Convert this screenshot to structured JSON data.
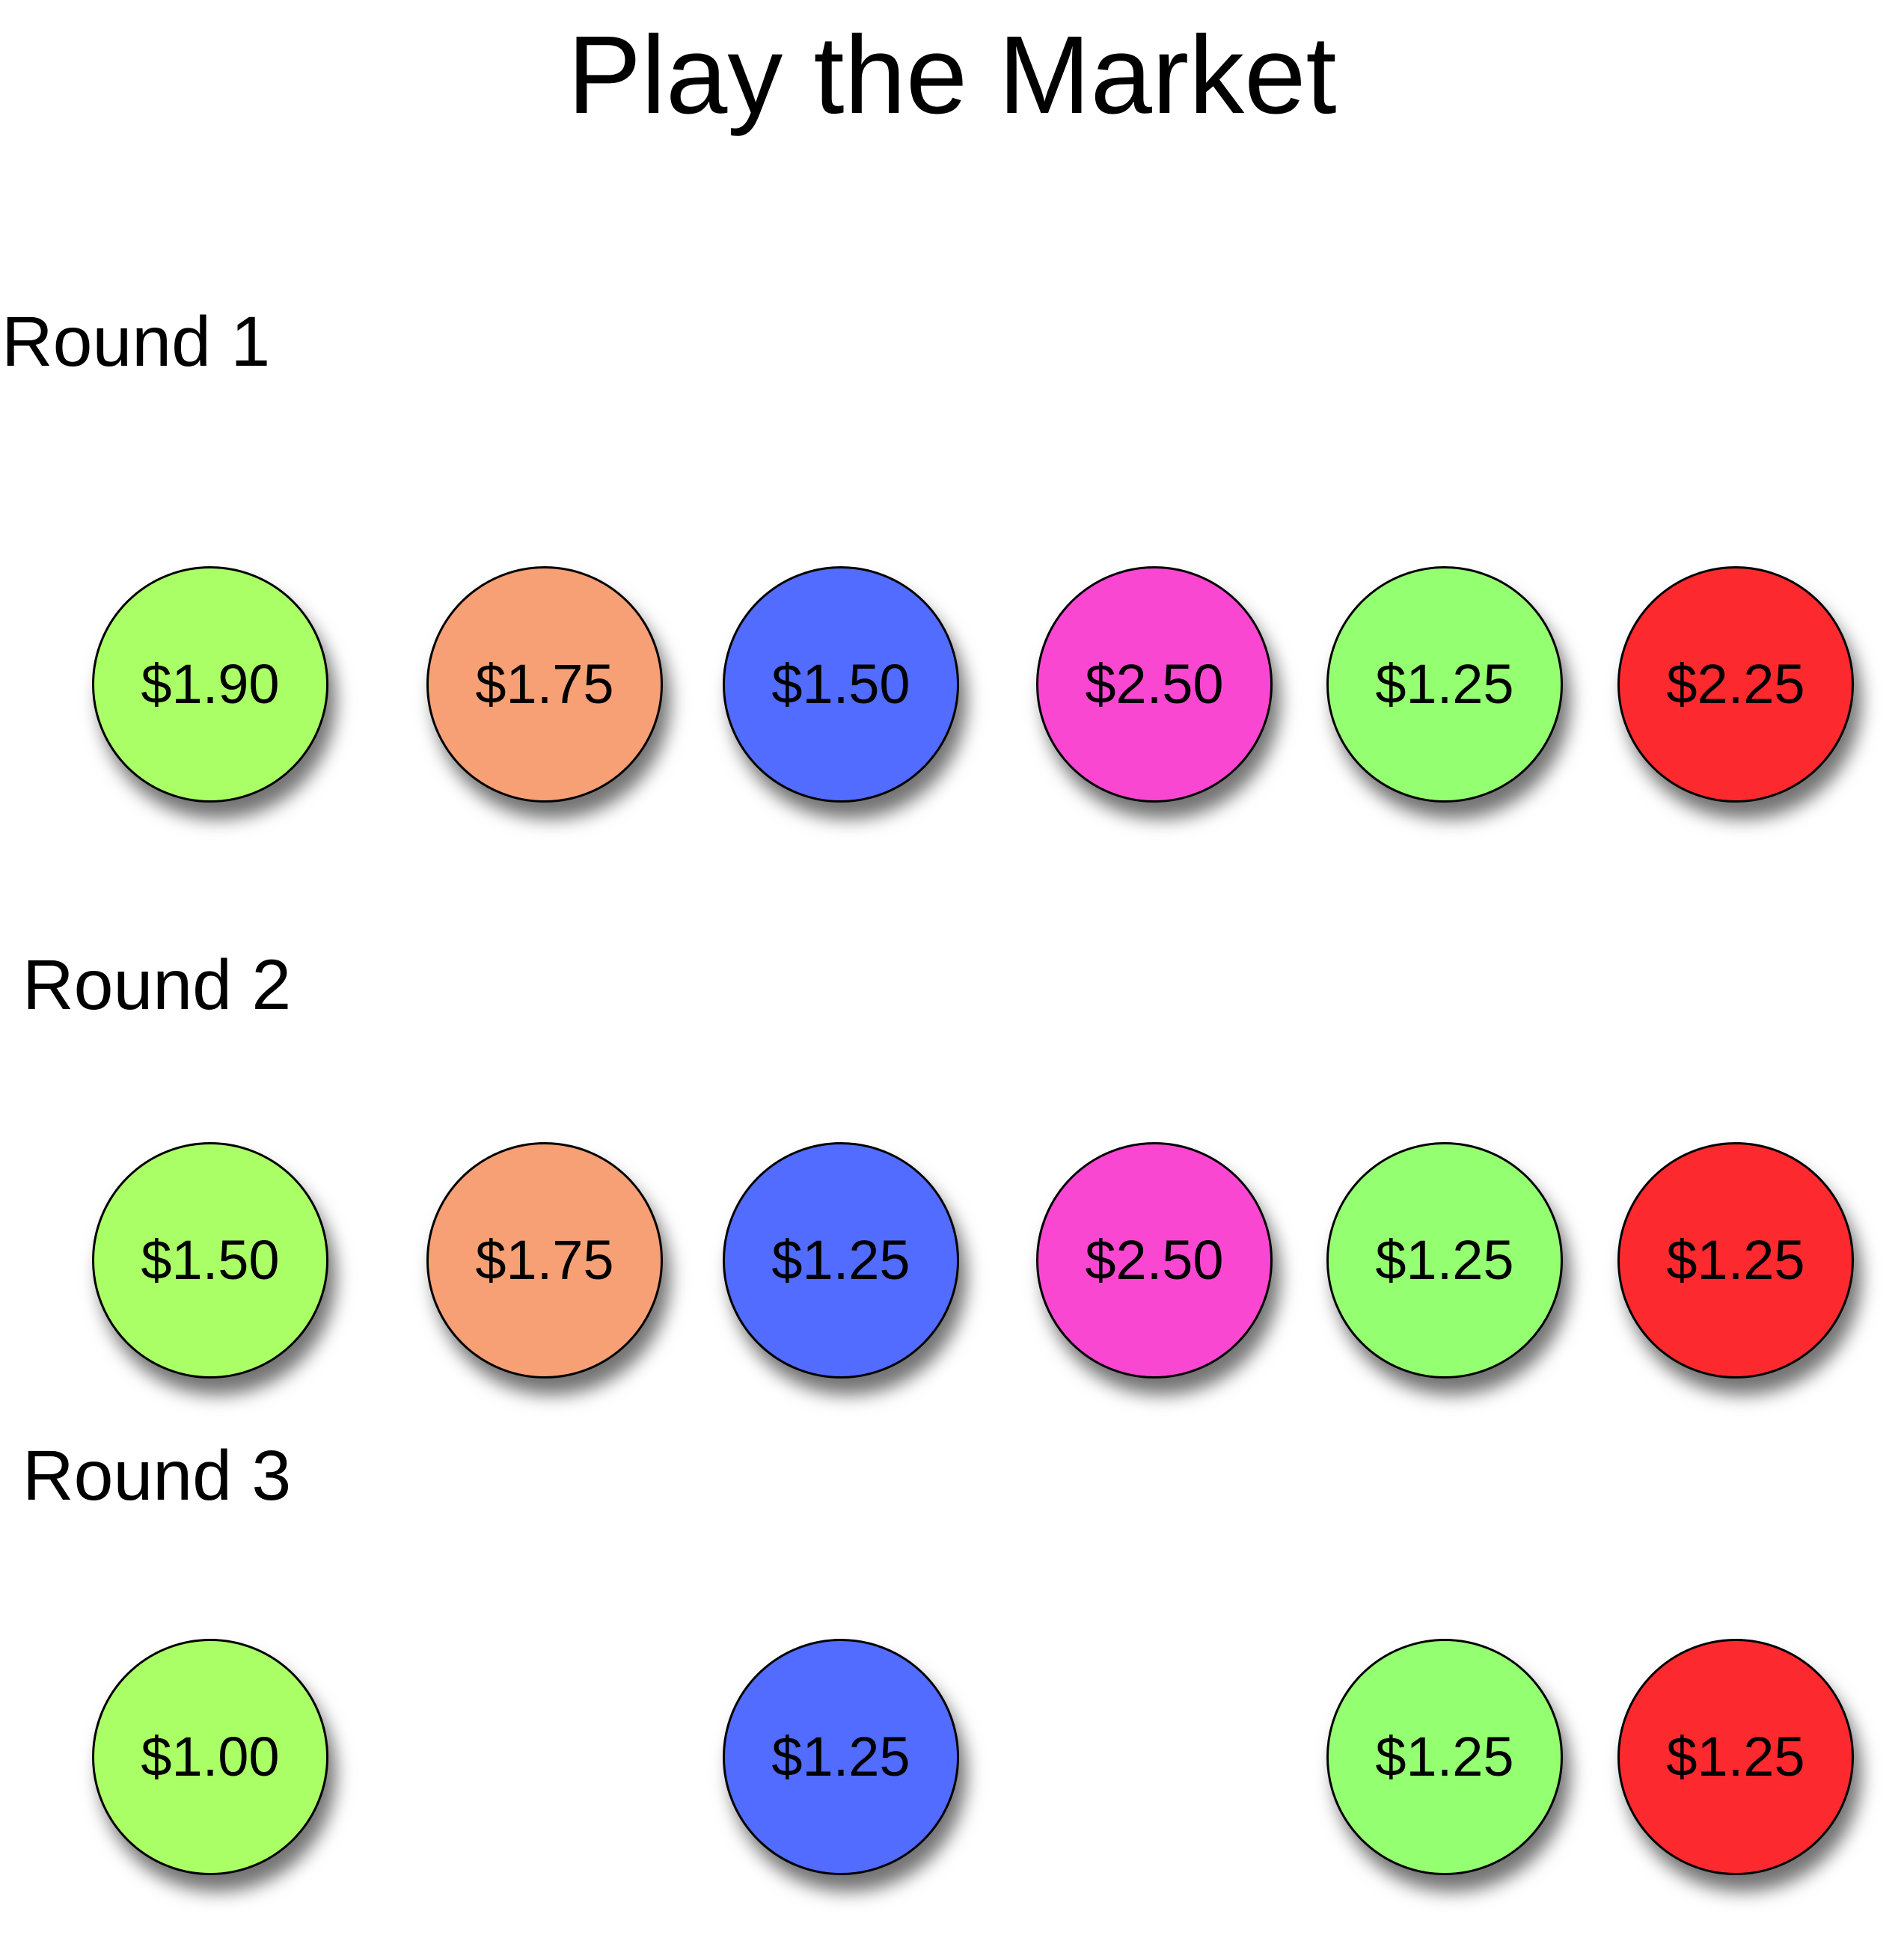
{
  "title": "Play the Market",
  "colors": {
    "lime": "#AAFF66",
    "orange": "#F7A075",
    "blue": "#516CFF",
    "magenta": "#FA47D2",
    "green": "#95FF72",
    "red": "#FC2A2E"
  },
  "rounds": [
    {
      "label": "Round 1",
      "chips": [
        {
          "color": "lime",
          "price": "$1.90"
        },
        {
          "color": "orange",
          "price": "$1.75"
        },
        {
          "color": "blue",
          "price": "$1.50"
        },
        {
          "color": "magenta",
          "price": "$2.50"
        },
        {
          "color": "green",
          "price": "$1.25"
        },
        {
          "color": "red",
          "price": "$2.25"
        }
      ]
    },
    {
      "label": "Round 2",
      "chips": [
        {
          "color": "lime",
          "price": "$1.50"
        },
        {
          "color": "orange",
          "price": "$1.75"
        },
        {
          "color": "blue",
          "price": "$1.25"
        },
        {
          "color": "magenta",
          "price": "$2.50"
        },
        {
          "color": "green",
          "price": "$1.25"
        },
        {
          "color": "red",
          "price": "$1.25"
        }
      ]
    },
    {
      "label": "Round 3",
      "chips": [
        {
          "color": "lime",
          "price": "$1.00"
        },
        {
          "color": "blue",
          "price": "$1.25"
        },
        {
          "color": "green",
          "price": "$1.25"
        },
        {
          "color": "red",
          "price": "$1.25"
        }
      ]
    }
  ]
}
